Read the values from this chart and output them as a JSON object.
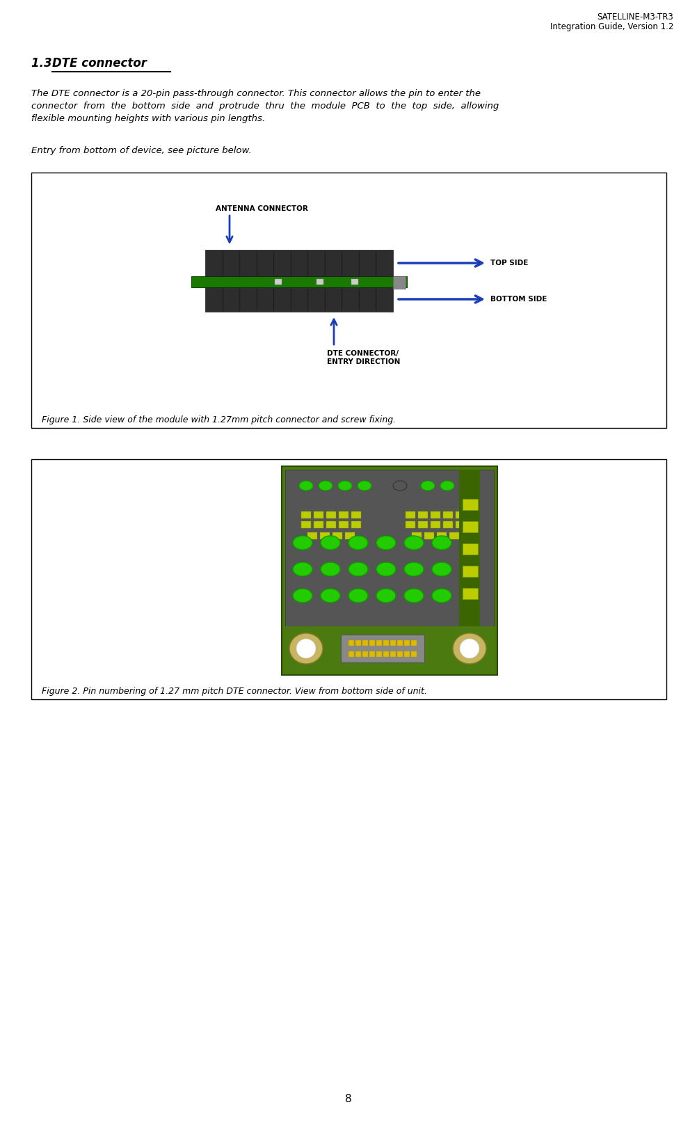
{
  "page_width": 10.03,
  "page_height": 16.11,
  "bg_color": "#ffffff",
  "header_line1": "SATELLINE-M3-TR3",
  "header_line2": "Integration Guide, Version 1.2",
  "header_fontsize": 8.5,
  "header_color": "#000000",
  "section_title": "1.3 DTE connector",
  "section_title_fontsize": 12,
  "body_fontsize": 9.5,
  "fig1_caption": "Figure 1. Side view of the module with 1.27mm pitch connector and screw fixing.",
  "fig2_caption": "Figure 2. Pin numbering of 1.27 mm pitch DTE connector. View from bottom side of unit.",
  "fig_caption_fontsize": 9,
  "page_number": "8",
  "arrow_color": "#1a3eb8",
  "connector_dark": "#2d2d2d",
  "pcb_green": "#1a7a00",
  "bracket_gray": "#888888"
}
